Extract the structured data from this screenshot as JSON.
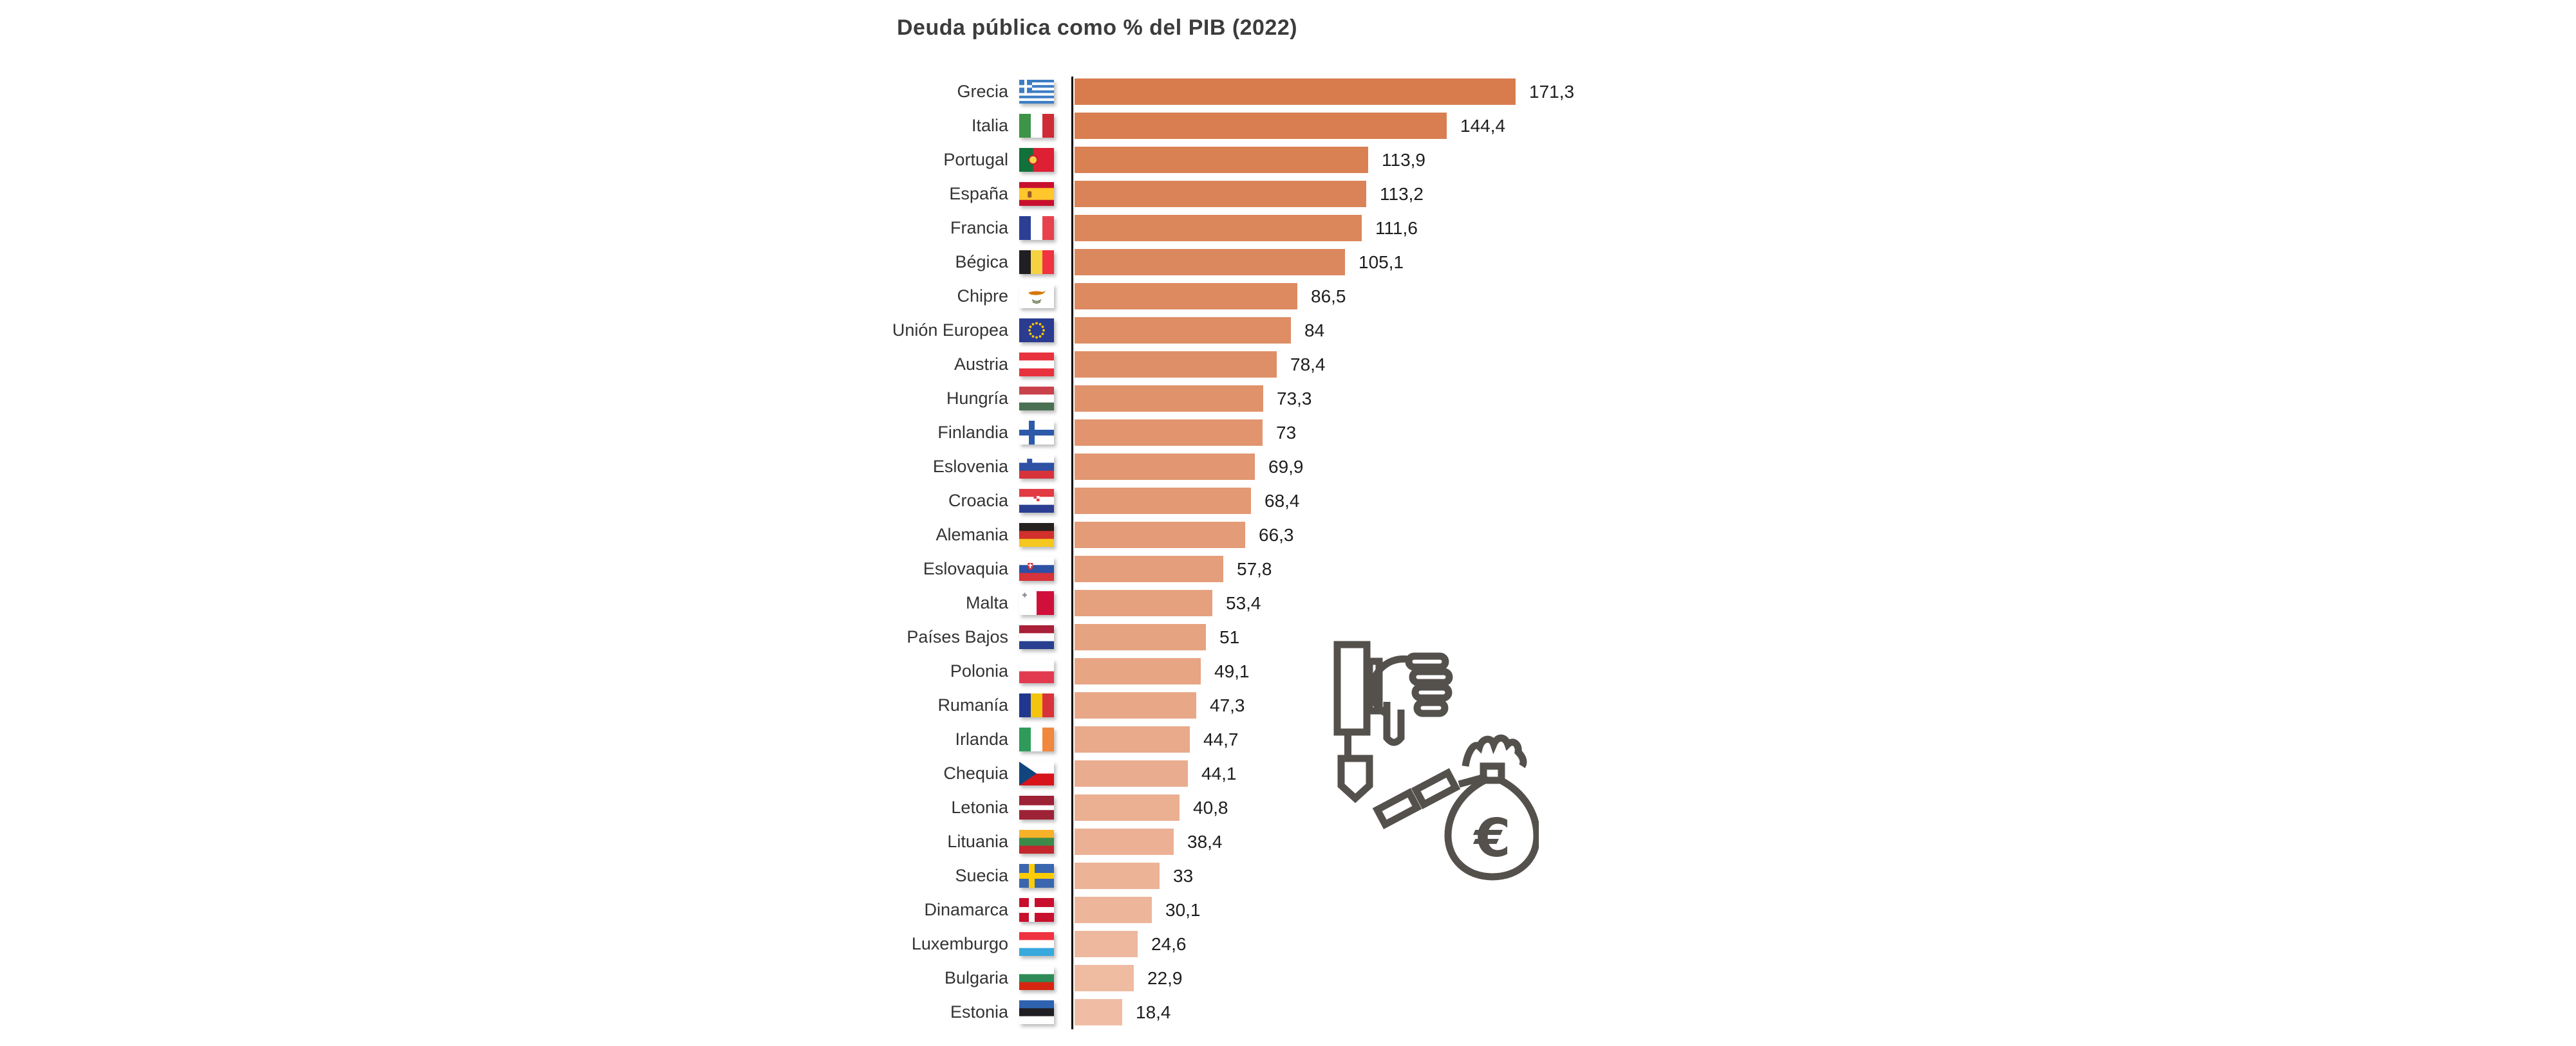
{
  "title": "Deuda pública como % del PIB (2022)",
  "title_color": "#3c3c3c",
  "chart_data": {
    "type": "bar",
    "orientation": "horizontal",
    "title": "Deuda pública como % del PIB (2022)",
    "year": 2022,
    "unit": "% del PIB",
    "xlim": [
      0,
      180
    ],
    "gridlines": false,
    "x_axis_ticks_visible": false,
    "value_labels_position": "end-of-bar",
    "decimal_separator": ",",
    "axis_baseline_color": "#000000",
    "bar_color_top": "#d87c4e",
    "bar_color_bottom": "#f0bda4",
    "countries": [
      {
        "name": "Grecia",
        "value": 171.3,
        "label": "171,3",
        "flag": {
          "code": "greece",
          "type": "greece",
          "colors": {
            "blue": "#3c7dc4",
            "white": "#ffffff"
          }
        }
      },
      {
        "name": "Italia",
        "value": 144.4,
        "label": "144,4",
        "flag": {
          "code": "italy",
          "type": "v",
          "stripes": [
            "#3d9348",
            "#ffffff",
            "#ce2b37"
          ]
        }
      },
      {
        "name": "Portugal",
        "value": 113.9,
        "label": "113,9",
        "flag": {
          "code": "portugal",
          "type": "v",
          "stripes": [
            "#10713a",
            "#dd2033"
          ],
          "weights": [
            2,
            3
          ],
          "emblem": {
            "kind": "circle",
            "cx": 0.4,
            "cy": 0.5,
            "fill": "#f8d24b",
            "ring": "#c81f2e"
          }
        }
      },
      {
        "name": "España",
        "value": 113.2,
        "label": "113,2",
        "flag": {
          "code": "spain",
          "type": "h",
          "stripes": [
            "#c8102e",
            "#ffc72c",
            "#c8102e"
          ],
          "weights": [
            1,
            2,
            1
          ],
          "emblem": {
            "kind": "blob",
            "cx": 0.3,
            "cy": 0.52,
            "fill": "#99582b"
          }
        }
      },
      {
        "name": "Francia",
        "value": 111.6,
        "label": "111,6",
        "flag": {
          "code": "france",
          "type": "v",
          "stripes": [
            "#2c3f94",
            "#ffffff",
            "#e8414e"
          ]
        }
      },
      {
        "name": "Bégica",
        "value": 105.1,
        "label": "105,1",
        "flag": {
          "code": "belgium",
          "type": "v",
          "stripes": [
            "#201f23",
            "#f5d242",
            "#ef3340"
          ]
        }
      },
      {
        "name": "Chipre",
        "value": 86.5,
        "label": "86,5",
        "flag": {
          "code": "cyprus",
          "type": "cyprus",
          "colors": {
            "bg": "#ffffff",
            "island": "#d57800",
            "branches": "#5b6b3c"
          }
        }
      },
      {
        "name": "Unión Europea",
        "value": 84,
        "label": "84",
        "flag": {
          "code": "eu",
          "type": "eu",
          "colors": {
            "bg": "#2b3b90",
            "stars": "#ffcc00"
          }
        }
      },
      {
        "name": "Austria",
        "value": 78.4,
        "label": "78,4",
        "flag": {
          "code": "austria",
          "type": "h",
          "stripes": [
            "#e8323e",
            "#ffffff",
            "#e8323e"
          ]
        }
      },
      {
        "name": "Hungría",
        "value": 73.3,
        "label": "73,3",
        "flag": {
          "code": "hungary",
          "type": "h",
          "stripes": [
            "#c8414b",
            "#ffffff",
            "#4a7053"
          ]
        }
      },
      {
        "name": "Finlandia",
        "value": 73,
        "label": "73",
        "flag": {
          "code": "finland",
          "type": "nordic",
          "colors": {
            "bg": "#ffffff",
            "cross": "#2c5aa9"
          }
        }
      },
      {
        "name": "Eslovenia",
        "value": 69.9,
        "label": "69,9",
        "flag": {
          "code": "slovenia",
          "type": "h",
          "stripes": [
            "#ffffff",
            "#2e50a5",
            "#d8333a"
          ],
          "emblem": {
            "kind": "shield",
            "cx": 0.3,
            "cy": 0.3,
            "fill": "#2e50a5"
          }
        }
      },
      {
        "name": "Croacia",
        "value": 68.4,
        "label": "68,4",
        "flag": {
          "code": "croatia",
          "type": "h",
          "stripes": [
            "#e23b42",
            "#ffffff",
            "#2b3f92"
          ],
          "emblem": {
            "kind": "checker",
            "cx": 0.5,
            "cy": 0.45,
            "c1": "#e23b42",
            "c2": "#ffffff"
          }
        }
      },
      {
        "name": "Alemania",
        "value": 66.3,
        "label": "66,3",
        "flag": {
          "code": "germany",
          "type": "h",
          "stripes": [
            "#26211e",
            "#d2302c",
            "#f5c81f"
          ]
        }
      },
      {
        "name": "Eslovaquia",
        "value": 57.8,
        "label": "57,8",
        "flag": {
          "code": "slovakia",
          "type": "h",
          "stripes": [
            "#ffffff",
            "#2e50a5",
            "#d8333a"
          ],
          "emblem": {
            "kind": "shield",
            "cx": 0.32,
            "cy": 0.38,
            "fill": "#d8333a",
            "inner": "#ffffff"
          }
        }
      },
      {
        "name": "Malta",
        "value": 53.4,
        "label": "53,4",
        "flag": {
          "code": "malta",
          "type": "malta",
          "colors": {
            "left": "#ffffff",
            "right": "#d0103a",
            "cross": "#8f8f8f"
          }
        }
      },
      {
        "name": "Países Bajos",
        "value": 51,
        "label": "51",
        "flag": {
          "code": "netherlands",
          "type": "h",
          "stripes": [
            "#a92038",
            "#ffffff",
            "#28408f"
          ]
        }
      },
      {
        "name": "Polonia",
        "value": 49.1,
        "label": "49,1",
        "flag": {
          "code": "poland",
          "type": "h",
          "stripes": [
            "#ffffff",
            "#e23b50"
          ]
        }
      },
      {
        "name": "Rumanía",
        "value": 47.3,
        "label": "47,3",
        "flag": {
          "code": "romania",
          "type": "v",
          "stripes": [
            "#21368f",
            "#f3c50f",
            "#d8333a"
          ]
        }
      },
      {
        "name": "Irlanda",
        "value": 44.7,
        "label": "44,7",
        "flag": {
          "code": "ireland",
          "type": "v",
          "stripes": [
            "#2e9b5b",
            "#ffffff",
            "#f0883e"
          ]
        }
      },
      {
        "name": "Chequia",
        "value": 44.1,
        "label": "44,1",
        "flag": {
          "code": "czechia",
          "type": "czech",
          "colors": {
            "top": "#ffffff",
            "bottom": "#d7141a",
            "triangle": "#11457e"
          }
        }
      },
      {
        "name": "Letonia",
        "value": 40.8,
        "label": "40,8",
        "flag": {
          "code": "latvia",
          "type": "h",
          "stripes": [
            "#9d2235",
            "#ffffff",
            "#9d2235"
          ],
          "weights": [
            2,
            1,
            2
          ]
        }
      },
      {
        "name": "Lituania",
        "value": 38.4,
        "label": "38,4",
        "flag": {
          "code": "lithuania",
          "type": "h",
          "stripes": [
            "#f8b229",
            "#3c8a4a",
            "#c1272d"
          ]
        }
      },
      {
        "name": "Suecia",
        "value": 33,
        "label": "33",
        "flag": {
          "code": "sweden",
          "type": "nordic",
          "colors": {
            "bg": "#3a66af",
            "cross": "#fecc02"
          }
        }
      },
      {
        "name": "Dinamarca",
        "value": 30.1,
        "label": "30,1",
        "flag": {
          "code": "denmark",
          "type": "nordic",
          "colors": {
            "bg": "#c8102e",
            "cross": "#ffffff"
          }
        }
      },
      {
        "name": "Luxemburgo",
        "value": 24.6,
        "label": "24,6",
        "flag": {
          "code": "luxembourg",
          "type": "h",
          "stripes": [
            "#ef3340",
            "#ffffff",
            "#39a8dc"
          ]
        }
      },
      {
        "name": "Bulgaria",
        "value": 22.9,
        "label": "22,9",
        "flag": {
          "code": "bulgaria",
          "type": "h",
          "stripes": [
            "#ffffff",
            "#2e8b57",
            "#d62612"
          ]
        }
      },
      {
        "name": "Estonia",
        "value": 18.4,
        "label": "18,4",
        "flag": {
          "code": "estonia",
          "type": "h",
          "stripes": [
            "#2e63b0",
            "#1f1f23",
            "#ffffff"
          ]
        }
      }
    ]
  },
  "icon": {
    "name": "thumbs-down-chained-money-bag",
    "euro_symbol": "€",
    "color": "#54514d"
  }
}
